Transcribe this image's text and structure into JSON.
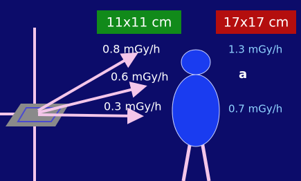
{
  "field_sizes": {
    "left": "11x11 cm",
    "right": "17x17 cm"
  },
  "dose_rates_left": [
    "0.8 mGy/h",
    "0.6 mGy/h",
    "0.3 mGy/h"
  ],
  "dose_rates_right": [
    "1.3 mGy/h",
    "0.7 mGy/h"
  ],
  "panel_label": "a"
}
